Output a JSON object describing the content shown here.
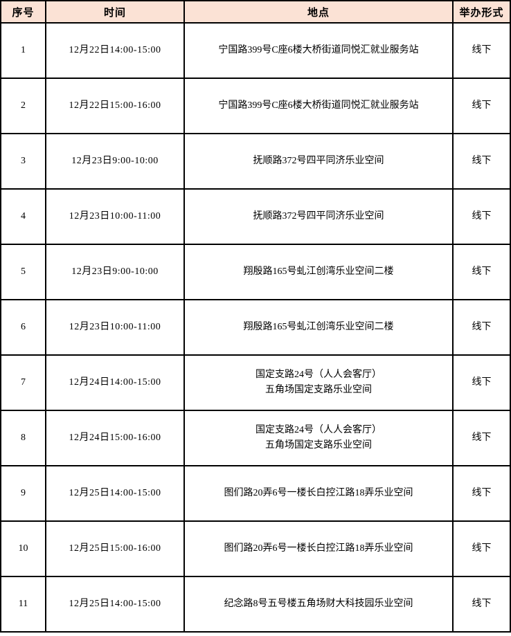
{
  "colors": {
    "header_bg": "#fbe2d5",
    "border": "#000000",
    "text": "#000000"
  },
  "table": {
    "headers": [
      "序号",
      "时间",
      "地点",
      "举办形式"
    ],
    "rows": [
      [
        "1",
        "12月22日14:00-15:00",
        "宁国路399号C座6楼大桥街道同悦汇就业服务站",
        "线下"
      ],
      [
        "2",
        "12月22日15:00-16:00",
        "宁国路399号C座6楼大桥街道同悦汇就业服务站",
        "线下"
      ],
      [
        "3",
        "12月23日9:00-10:00",
        "抚顺路372号四平同济乐业空间",
        "线下"
      ],
      [
        "4",
        "12月23日10:00-11:00",
        "抚顺路372号四平同济乐业空间",
        "线下"
      ],
      [
        "5",
        "12月23日9:00-10:00",
        "翔殷路165号虬江创湾乐业空间二楼",
        "线下"
      ],
      [
        "6",
        "12月23日10:00-11:00",
        "翔殷路165号虬江创湾乐业空间二楼",
        "线下"
      ],
      [
        "7",
        "12月24日14:00-15:00",
        "国定支路24号（人人会客厅）\n五角场国定支路乐业空间",
        "线下"
      ],
      [
        "8",
        "12月24日15:00-16:00",
        "国定支路24号（人人会客厅）\n五角场国定支路乐业空间",
        "线下"
      ],
      [
        "9",
        "12月25日14:00-15:00",
        "图们路20弄6号一楼长白控江路18弄乐业空间",
        "线下"
      ],
      [
        "10",
        "12月25日15:00-16:00",
        "图们路20弄6号一楼长白控江路18弄乐业空间",
        "线下"
      ],
      [
        "11",
        "12月25日14:00-15:00",
        "纪念路8号五号楼五角场财大科技园乐业空间",
        "线下"
      ]
    ]
  }
}
